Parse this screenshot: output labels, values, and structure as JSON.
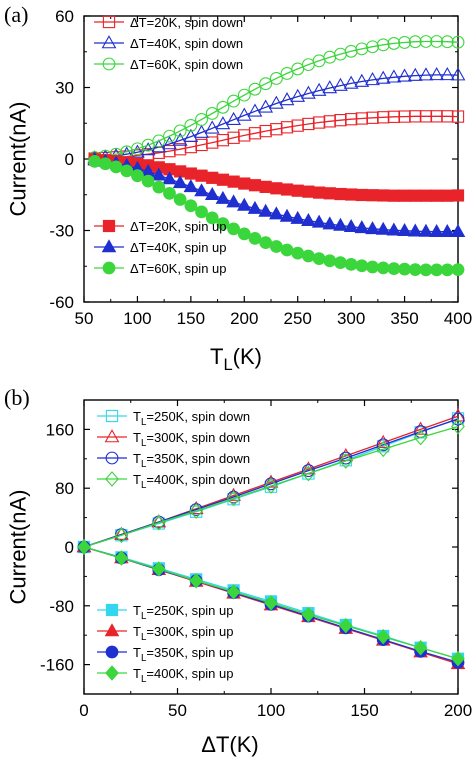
{
  "chart_data": [
    {
      "panel_label": "(a)",
      "type": "line",
      "xlabel": "T_L(K)",
      "ylabel": "Current(nA)",
      "xlim": [
        50,
        400
      ],
      "ylim": [
        -60,
        60
      ],
      "xticks": [
        50,
        100,
        150,
        200,
        250,
        300,
        350,
        400
      ],
      "yticks": [
        -60,
        -30,
        0,
        30,
        60
      ],
      "tick_labels_x": [
        "50",
        "100",
        "150",
        "200",
        "250",
        "300",
        "350",
        "400"
      ],
      "tick_labels_y": [
        "-60",
        "-30",
        "0",
        "30",
        "60"
      ],
      "grid": false,
      "legend": "top-left and bottom-left",
      "x": [
        60,
        70,
        80,
        90,
        100,
        110,
        120,
        130,
        140,
        150,
        160,
        170,
        180,
        190,
        200,
        210,
        220,
        230,
        240,
        250,
        260,
        270,
        280,
        290,
        300,
        310,
        320,
        330,
        340,
        350,
        360,
        370,
        380,
        390,
        400
      ],
      "series": [
        {
          "name": "ΔT=20K, spin down",
          "color": "#e8242a",
          "marker": "square-open",
          "values": [
            0.2,
            0.4,
            0.7,
            1.0,
            1.5,
            2.0,
            2.6,
            3.3,
            4.1,
            5.0,
            5.9,
            6.9,
            7.9,
            8.9,
            9.9,
            10.8,
            11.7,
            12.5,
            13.3,
            14.0,
            14.7,
            15.3,
            15.8,
            16.3,
            16.7,
            17.0,
            17.3,
            17.5,
            17.7,
            17.8,
            17.9,
            17.9,
            17.9,
            17.9,
            17.8
          ]
        },
        {
          "name": "ΔT=40K, spin down",
          "color": "#1f2fd0",
          "marker": "triangle-open",
          "values": [
            0.4,
            0.8,
            1.3,
            2.0,
            2.8,
            3.8,
            5.0,
            6.3,
            7.8,
            9.4,
            11.1,
            12.9,
            14.7,
            16.5,
            18.3,
            20.0,
            21.7,
            23.3,
            24.8,
            26.2,
            27.5,
            28.7,
            29.8,
            30.8,
            31.7,
            32.5,
            33.2,
            33.8,
            34.3,
            34.7,
            35.0,
            35.2,
            35.3,
            35.3,
            35.2
          ]
        },
        {
          "name": "ΔT=60K, spin down",
          "color": "#3bd63b",
          "marker": "circle-open",
          "values": [
            0.6,
            1.2,
            2.0,
            3.0,
            4.3,
            5.8,
            7.6,
            9.6,
            11.8,
            14.1,
            16.6,
            19.1,
            21.7,
            24.3,
            26.8,
            29.3,
            31.6,
            33.8,
            35.9,
            37.8,
            39.6,
            41.2,
            42.7,
            44.0,
            45.2,
            46.2,
            47.1,
            47.9,
            48.5,
            48.9,
            49.2,
            49.3,
            49.3,
            49.2,
            49.0
          ]
        },
        {
          "name": "ΔT=20K, spin up",
          "color": "#e8242a",
          "marker": "square-filled",
          "values": [
            -0.2,
            -0.5,
            -0.9,
            -1.4,
            -2.0,
            -2.7,
            -3.5,
            -4.3,
            -5.2,
            -6.1,
            -7.0,
            -7.9,
            -8.7,
            -9.5,
            -10.3,
            -11.0,
            -11.7,
            -12.3,
            -12.8,
            -13.3,
            -13.7,
            -14.1,
            -14.4,
            -14.7,
            -14.9,
            -15.1,
            -15.2,
            -15.3,
            -15.4,
            -15.4,
            -15.4,
            -15.4,
            -15.4,
            -15.4,
            -15.3
          ]
        },
        {
          "name": "ΔT=40K, spin up",
          "color": "#1f2fd0",
          "marker": "triangle-filled",
          "values": [
            -0.4,
            -1.0,
            -1.8,
            -2.8,
            -4.0,
            -5.3,
            -6.8,
            -8.4,
            -10.0,
            -11.7,
            -13.4,
            -15.0,
            -16.6,
            -18.1,
            -19.5,
            -20.8,
            -22.0,
            -23.1,
            -24.1,
            -25.0,
            -25.9,
            -26.6,
            -27.3,
            -27.9,
            -28.4,
            -28.9,
            -29.3,
            -29.6,
            -29.9,
            -30.1,
            -30.3,
            -30.4,
            -30.5,
            -30.5,
            -30.5
          ]
        },
        {
          "name": "ΔT=60K, spin up",
          "color": "#3bd63b",
          "marker": "circle-filled",
          "values": [
            -1.0,
            -2.0,
            -3.3,
            -5.0,
            -7.0,
            -9.3,
            -11.8,
            -14.4,
            -17.0,
            -19.6,
            -22.2,
            -24.7,
            -27.1,
            -29.3,
            -31.4,
            -33.3,
            -35.1,
            -36.7,
            -38.2,
            -39.5,
            -40.7,
            -41.8,
            -42.7,
            -43.5,
            -44.2,
            -44.8,
            -45.3,
            -45.7,
            -46.0,
            -46.2,
            -46.4,
            -46.5,
            -46.5,
            -46.5,
            -46.4
          ]
        }
      ]
    },
    {
      "panel_label": "(b)",
      "type": "line",
      "xlabel": "ΔT(K)",
      "ylabel": "Current(nA)",
      "xlim": [
        0,
        200
      ],
      "ylim": [
        -200,
        200
      ],
      "xticks": [
        0,
        50,
        100,
        150,
        200
      ],
      "yticks": [
        -160,
        -80,
        0,
        80,
        160
      ],
      "tick_labels_x": [
        "0",
        "50",
        "100",
        "150",
        "200"
      ],
      "tick_labels_y": [
        "-160",
        "-80",
        "0",
        "80",
        "160"
      ],
      "grid": false,
      "legend": "top-left and bottom-left",
      "x": [
        0,
        20,
        40,
        60,
        80,
        100,
        120,
        140,
        160,
        180,
        200
      ],
      "series": [
        {
          "name": "T_L=250K, spin down",
          "color": "#33d6f0",
          "marker": "square-open",
          "values": [
            0,
            16,
            32,
            48,
            65,
            82,
            100,
            118,
            137,
            156,
            175
          ]
        },
        {
          "name": "T_L=300K, spin down",
          "color": "#e8242a",
          "marker": "triangle-open",
          "values": [
            0,
            17,
            34,
            52,
            70,
            88,
            106,
            124,
            142,
            160,
            178
          ]
        },
        {
          "name": "T_L=350K, spin down",
          "color": "#1f2fd0",
          "marker": "circle-open",
          "values": [
            0,
            17,
            34,
            51,
            68,
            86,
            104,
            121,
            139,
            157,
            174
          ]
        },
        {
          "name": "T_L=400K, spin down",
          "color": "#3bd63b",
          "marker": "diamond-open",
          "values": [
            0,
            16,
            33,
            49,
            66,
            83,
            100,
            117,
            133,
            149,
            164
          ]
        },
        {
          "name": "T_L=250K, spin up",
          "color": "#33d6f0",
          "marker": "square-filled",
          "values": [
            0,
            -14,
            -29,
            -44,
            -59,
            -74,
            -90,
            -106,
            -121,
            -137,
            -152
          ]
        },
        {
          "name": "T_L=300K, spin up",
          "color": "#e8242a",
          "marker": "triangle-filled",
          "values": [
            0,
            -15,
            -31,
            -47,
            -63,
            -79,
            -95,
            -111,
            -127,
            -143,
            -159
          ]
        },
        {
          "name": "T_L=350K, spin up",
          "color": "#1f2fd0",
          "marker": "circle-filled",
          "values": [
            0,
            -15,
            -31,
            -46,
            -62,
            -78,
            -94,
            -110,
            -126,
            -142,
            -157
          ]
        },
        {
          "name": "T_L=400K, spin up",
          "color": "#3bd63b",
          "marker": "diamond-filled",
          "values": [
            0,
            -15,
            -30,
            -46,
            -61,
            -76,
            -92,
            -107,
            -122,
            -137,
            -152
          ]
        }
      ]
    }
  ]
}
